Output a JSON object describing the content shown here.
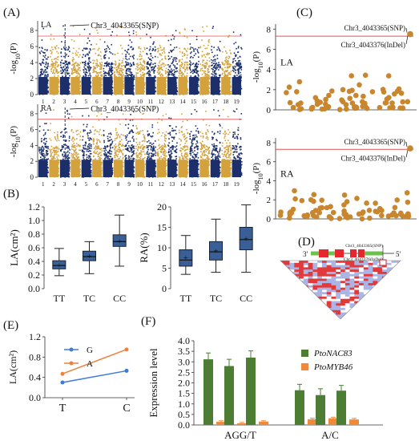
{
  "chart_data": [
    {
      "panel": "(A)",
      "type": "scatter",
      "subplots": [
        {
          "label": "LA",
          "ylabel": "-log10(P)",
          "yticks": [
            0,
            2,
            4,
            6,
            8
          ],
          "ylim": [
            0,
            9
          ],
          "threshold": 7.3,
          "annotation": "Chr3_4043365(SNP)"
        },
        {
          "label": "RA",
          "ylabel": "-log10(P)",
          "yticks": [
            0,
            2,
            4,
            6,
            8
          ],
          "ylim": [
            0,
            9
          ],
          "threshold": 7.3,
          "annotation": "Chr3_4043365(SNP)"
        }
      ],
      "chromosomes": [
        "1",
        "2",
        "3",
        "4",
        "5",
        "6",
        "7",
        "8",
        "9",
        "10",
        "11",
        "12",
        "13",
        "14",
        "15",
        "16",
        "17",
        "18",
        "19"
      ],
      "colors": {
        "odd": "#1c2f6b",
        "even": "#d4a23c",
        "threshold": "#e05050"
      }
    },
    {
      "panel": "(B)",
      "type": "box",
      "plots": [
        {
          "ylabel": "LA(cm²)",
          "categories": [
            "TT",
            "TC",
            "CC"
          ],
          "yticks": [
            "0.0",
            "0.2",
            "0.4",
            "0.6",
            "0.8",
            "1.0",
            "1.2"
          ],
          "ylim": [
            0,
            1.2
          ],
          "boxes": [
            {
              "min": 0.19,
              "q1": 0.29,
              "median": 0.34,
              "q3": 0.41,
              "max": 0.59,
              "mean": 0.35
            },
            {
              "min": 0.22,
              "q1": 0.41,
              "median": 0.47,
              "q3": 0.55,
              "max": 0.69,
              "mean": 0.48
            },
            {
              "min": 0.33,
              "q1": 0.62,
              "median": 0.69,
              "q3": 0.79,
              "max": 1.08,
              "mean": 0.7
            }
          ]
        },
        {
          "ylabel": "RA(%)",
          "categories": [
            "TT",
            "TC",
            "CC"
          ],
          "yticks": [
            "0",
            "5",
            "10",
            "15",
            "20"
          ],
          "ylim": [
            0,
            20
          ],
          "boxes": [
            {
              "min": 3.5,
              "q1": 5.5,
              "median": 7.0,
              "q3": 9.5,
              "max": 13.0,
              "mean": 7.6
            },
            {
              "min": 4.0,
              "q1": 7.0,
              "median": 9.0,
              "q3": 11.5,
              "max": 17.0,
              "mean": 9.3
            },
            {
              "min": 4.0,
              "q1": 9.5,
              "median": 12.0,
              "q3": 15.0,
              "max": 20.5,
              "mean": 12.3
            }
          ]
        }
      ],
      "color": "#3a5f97"
    },
    {
      "panel": "(C)",
      "type": "scatter",
      "subplots": [
        {
          "label": "LA",
          "ylabel": "-log10(P)",
          "yticks": [
            0,
            2,
            4,
            6,
            8
          ],
          "ylim": [
            0,
            8.5
          ],
          "threshold": 7.3,
          "annotations": [
            "Chr3_4043365(SNP)",
            "Chr3_4043376(InDel)"
          ],
          "peak": 7.5
        },
        {
          "label": "RA",
          "ylabel": "-log10(P)",
          "yticks": [
            0,
            2,
            4,
            6,
            8
          ],
          "ylim": [
            0,
            8.5
          ],
          "threshold": 7.3,
          "annotations": [
            "Chr3_4043365(SNP)",
            "Chr3_4043376(InDel)"
          ],
          "peak": 7.4
        }
      ],
      "color": "#c8862e"
    },
    {
      "panel": "(D)",
      "type": "heatmap",
      "strand_left": "3'",
      "strand_right": "5'",
      "labels": [
        "Chr3_4043365(SNP)",
        "Chr3_4043376(InDel)"
      ],
      "colors": {
        "high": "#e03a3a",
        "low": "#aab5e6",
        "gene": "#6dc24b",
        "exon": "#e8262e"
      }
    },
    {
      "panel": "(E)",
      "type": "line",
      "categories": [
        "T",
        "C"
      ],
      "ylabel": "LA(cm²)",
      "yticks": [
        "0.0",
        "0.4",
        "0.8",
        "1.2"
      ],
      "ylim": [
        0,
        1.2
      ],
      "series": [
        {
          "name": "G",
          "values": [
            0.3,
            0.53
          ],
          "color": "#3d7bd6"
        },
        {
          "name": "A",
          "values": [
            0.47,
            0.95
          ],
          "color": "#f0803c"
        }
      ]
    },
    {
      "panel": "(F)",
      "type": "bar",
      "ylabel": "Expression level",
      "yticks": [
        "0.0",
        "0.5",
        "1.0",
        "1.5",
        "2.0",
        "2.5",
        "3.0",
        "3.5",
        "4.0"
      ],
      "ylim": [
        0,
        4.0
      ],
      "groups": [
        "AGG/T",
        "A/C"
      ],
      "series": [
        {
          "name": "PtoNAC83",
          "values": [
            3.12,
            2.8,
            3.2,
            1.65,
            1.42,
            1.63
          ],
          "errors": [
            0.3,
            0.32,
            0.32,
            0.28,
            0.3,
            0.25
          ],
          "color": "#4c7d33"
        },
        {
          "name": "PtoMYB46",
          "values": [
            0.15,
            0.08,
            0.16,
            0.27,
            0.32,
            0.26
          ],
          "errors": [
            0.05,
            0.04,
            0.04,
            0.05,
            0.05,
            0.05
          ],
          "color": "#ee8a3a"
        }
      ]
    }
  ]
}
